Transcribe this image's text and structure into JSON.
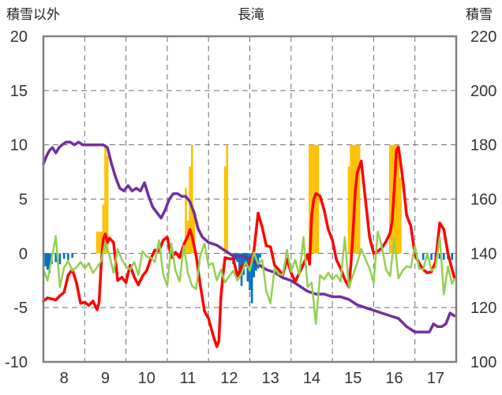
{
  "chart_data": {
    "type": "line",
    "title": "長滝",
    "left_axis_label": "積雪以外",
    "right_axis_label": "積雪",
    "x_ticks": [
      "8",
      "9",
      "10",
      "11",
      "12",
      "13",
      "14",
      "15",
      "16",
      "17"
    ],
    "x_range": [
      7.5,
      17.5
    ],
    "y_left_range": [
      -10,
      20
    ],
    "y_left_ticks": [
      "20",
      "15",
      "10",
      "5",
      "0",
      "-5",
      "-10"
    ],
    "y_right_range": [
      100,
      220
    ],
    "y_right_ticks": [
      "220",
      "200",
      "180",
      "160",
      "140",
      "120",
      "100"
    ],
    "grid": "dashed",
    "series": [
      {
        "color": "#7030A0",
        "axis": "right",
        "x": [
          7.5,
          7.58,
          7.65,
          7.72,
          7.8,
          7.88,
          7.95,
          8.05,
          8.15,
          8.25,
          8.35,
          8.45,
          8.55,
          8.65,
          8.75,
          8.85,
          8.95,
          9.05,
          9.15,
          9.25,
          9.35,
          9.45,
          9.55,
          9.65,
          9.75,
          9.85,
          9.95,
          10.05,
          10.15,
          10.25,
          10.35,
          10.45,
          10.55,
          10.65,
          10.75,
          10.85,
          10.95,
          11.05,
          11.15,
          11.25,
          11.35,
          11.5,
          11.7,
          11.9,
          12.1,
          12.3,
          12.5,
          12.7,
          12.9,
          13.1,
          13.3,
          13.5,
          13.7,
          13.9,
          14.1,
          14.3,
          14.5,
          14.7,
          14.9,
          15.1,
          15.3,
          15.5,
          15.7,
          15.9,
          16.1,
          16.3,
          16.5,
          16.65,
          16.75,
          16.85,
          16.95,
          17.05,
          17.15,
          17.25,
          17.35,
          17.45
        ],
        "values": [
          173,
          176,
          178,
          179,
          177,
          179,
          180,
          181,
          181,
          180,
          181,
          180,
          180,
          180,
          180,
          180,
          180,
          179,
          173,
          168,
          164,
          163,
          165,
          163,
          164,
          163,
          166,
          161,
          157,
          155,
          153,
          156,
          160,
          162,
          162,
          161,
          161,
          159,
          155,
          149,
          146,
          144,
          143,
          141,
          139,
          139,
          138,
          136,
          134,
          133,
          131,
          130,
          128,
          126,
          125,
          125,
          124,
          124,
          123,
          121,
          120,
          119,
          118,
          117,
          116,
          113,
          111,
          111,
          111,
          111,
          114,
          113,
          113,
          114,
          118,
          117
        ]
      },
      {
        "color": "#FF0000",
        "axis": "left",
        "x": [
          7.5,
          7.6,
          7.7,
          7.8,
          7.9,
          8.0,
          8.1,
          8.2,
          8.3,
          8.4,
          8.5,
          8.6,
          8.7,
          8.8,
          8.85,
          8.9,
          8.95,
          9.0,
          9.05,
          9.1,
          9.2,
          9.3,
          9.4,
          9.5,
          9.6,
          9.7,
          9.8,
          9.9,
          10.0,
          10.1,
          10.2,
          10.3,
          10.4,
          10.5,
          10.6,
          10.7,
          10.8,
          10.9,
          11.0,
          11.05,
          11.1,
          11.2,
          11.3,
          11.4,
          11.5,
          11.6,
          11.7,
          11.75,
          11.8,
          11.85,
          11.9,
          12.0,
          12.1,
          12.2,
          12.3,
          12.4,
          12.5,
          12.6,
          12.7,
          12.8,
          12.9,
          13.0,
          13.1,
          13.2,
          13.3,
          13.4,
          13.5,
          13.6,
          13.7,
          13.8,
          13.9,
          13.95,
          14.0,
          14.05,
          14.1,
          14.2,
          14.3,
          14.4,
          14.5,
          14.6,
          14.7,
          14.8,
          14.9,
          14.95,
          15.0,
          15.05,
          15.1,
          15.2,
          15.3,
          15.4,
          15.5,
          15.6,
          15.7,
          15.8,
          15.9,
          15.95,
          16.0,
          16.05,
          16.1,
          16.2,
          16.3,
          16.4,
          16.5,
          16.6,
          16.7,
          16.8,
          16.9,
          17.0,
          17.1,
          17.2,
          17.3,
          17.4,
          17.45
        ],
        "values": [
          -4.4,
          -4.1,
          -4.2,
          -4.3,
          -3.9,
          -3.6,
          -2.0,
          -1.5,
          -2.7,
          -4.6,
          -4.5,
          -4.8,
          -4.4,
          -5.2,
          -4.5,
          -1.0,
          1.3,
          1.8,
          1.0,
          1.4,
          1.0,
          -2.5,
          -2.2,
          -2.7,
          -1.1,
          -2.2,
          -2.9,
          -2.1,
          -1.6,
          -0.5,
          0.3,
          0.2,
          1.2,
          1.5,
          -0.4,
          0.1,
          -0.4,
          0.8,
          1.6,
          2.2,
          1.6,
          -0.2,
          -2.9,
          -5.3,
          -6.0,
          -7.4,
          -8.6,
          -8.1,
          -4.0,
          -2.0,
          -0.4,
          -0.5,
          -0.5,
          -2.1,
          -1.2,
          -1.0,
          -0.9,
          0.2,
          3.7,
          2.4,
          0.7,
          0.6,
          -1.1,
          -1.5,
          -2.0,
          -0.5,
          -1.8,
          -2.6,
          -1.8,
          -1.0,
          -0.1,
          -1.0,
          3.5,
          5.0,
          5.5,
          5.3,
          4.0,
          2.2,
          1.2,
          -0.6,
          -1.4,
          -2.4,
          -3.1,
          -1.0,
          2.0,
          5.5,
          7.4,
          8.5,
          5.0,
          1.5,
          0.0,
          0.2,
          0.5,
          1.1,
          1.9,
          3.0,
          6.0,
          9.5,
          9.8,
          7.0,
          3.5,
          2.5,
          -0.1,
          -0.9,
          -1.5,
          -1.8,
          -1.7,
          -0.8,
          2.8,
          2.2,
          0.0,
          -1.5,
          -2.2
        ]
      },
      {
        "color": "#92D050",
        "axis": "left",
        "x": [
          7.5,
          7.6,
          7.7,
          7.8,
          7.9,
          8.0,
          8.1,
          8.2,
          8.3,
          8.4,
          8.5,
          8.6,
          8.7,
          8.8,
          8.9,
          9.0,
          9.1,
          9.2,
          9.3,
          9.4,
          9.5,
          9.6,
          9.7,
          9.8,
          9.9,
          10.0,
          10.1,
          10.2,
          10.3,
          10.4,
          10.5,
          10.6,
          10.7,
          10.8,
          10.9,
          11.0,
          11.1,
          11.2,
          11.3,
          11.4,
          11.5,
          11.6,
          11.7,
          11.8,
          11.9,
          12.0,
          12.1,
          12.2,
          12.3,
          12.4,
          12.5,
          12.6,
          12.7,
          12.8,
          12.9,
          13.0,
          13.1,
          13.2,
          13.3,
          13.4,
          13.5,
          13.6,
          13.7,
          13.8,
          13.9,
          14.0,
          14.1,
          14.2,
          14.3,
          14.4,
          14.5,
          14.6,
          14.7,
          14.8,
          14.9,
          15.0,
          15.1,
          15.2,
          15.3,
          15.4,
          15.5,
          15.6,
          15.7,
          15.8,
          15.9,
          16.0,
          16.1,
          16.2,
          16.3,
          16.4,
          16.5,
          16.6,
          16.7,
          16.8,
          16.9,
          17.0,
          17.1,
          17.2,
          17.3,
          17.4,
          17.45
        ],
        "values": [
          -1.5,
          -2.5,
          -0.5,
          1.6,
          -3.1,
          -1.3,
          -0.7,
          -1.6,
          -1.3,
          -0.8,
          -1.4,
          -0.9,
          -1.8,
          -1.3,
          -0.7,
          1.0,
          -0.2,
          -1.8,
          0.4,
          -0.6,
          -1.2,
          -1.5,
          -0.8,
          -2.0,
          0.2,
          -0.3,
          -0.4,
          -0.8,
          1.2,
          -1.9,
          -3.0,
          0.9,
          -1.6,
          -2.6,
          0.7,
          -1.8,
          -3.0,
          -3.3,
          -0.2,
          0.9,
          -1.1,
          -0.9,
          -2.5,
          -1.5,
          -2.7,
          -2.1,
          -1.6,
          -2.5,
          -1.9,
          -0.8,
          -1.6,
          0.1,
          -1.0,
          -0.6,
          -3.5,
          -4.6,
          -1.4,
          -1.9,
          -2.0,
          0.3,
          -1.7,
          -0.6,
          -2.0,
          1.5,
          -3.1,
          -2.7,
          -6.5,
          -2.0,
          -2.4,
          -1.8,
          -2.4,
          -2.0,
          -2.6,
          1.5,
          -3.1,
          -2.0,
          -0.9,
          0.4,
          -0.5,
          -1.4,
          -2.7,
          2.0,
          0.6,
          -1.5,
          -2.1,
          1.4,
          -2.3,
          -1.6,
          -1.2,
          -1.3,
          0.7,
          -1.4,
          -1.5,
          0.0,
          -1.6,
          -1.3,
          1.5,
          -3.8,
          -1.2,
          -2.8,
          -2.4
        ]
      }
    ],
    "bars": [
      {
        "color": "#FFC000",
        "axis": "left",
        "x": [
          8.8,
          8.85,
          8.9,
          8.95,
          9.0,
          9.05,
          10.95,
          11.0,
          11.05,
          11.1,
          11.15,
          11.9,
          11.95,
          13.95,
          14.0,
          14.05,
          14.1,
          14.15,
          14.9,
          14.95,
          15.0,
          15.05,
          15.1,
          15.15,
          15.9,
          15.95,
          16.0,
          16.05,
          16.1,
          16.15
        ],
        "values": [
          2.0,
          2.0,
          2.0,
          4.5,
          10.0,
          9.0,
          6.0,
          3.0,
          8.0,
          10.0,
          4.0,
          8.0,
          10.0,
          10.0,
          10.0,
          10.0,
          10.0,
          10.0,
          8.0,
          10.0,
          10.0,
          10.0,
          10.0,
          10.0,
          10.0,
          10.0,
          10.0,
          10.0,
          9.0,
          7.0
        ]
      },
      {
        "color": "#0070C0",
        "axis": "left",
        "x": [
          7.55,
          7.6,
          7.65,
          7.7,
          7.8,
          7.9,
          8.0,
          8.1,
          8.2,
          12.1,
          12.15,
          12.2,
          12.25,
          12.3,
          12.35,
          12.4,
          12.45,
          12.5,
          12.55,
          12.6,
          12.65,
          12.7,
          12.75,
          16.7,
          16.8,
          16.9,
          17.0,
          17.1,
          17.2,
          17.3,
          17.4
        ],
        "values": [
          -1.2,
          -1.5,
          -1.8,
          -1.0,
          -0.8,
          -1.0,
          -0.5,
          -0.6,
          -0.4,
          -1.0,
          -0.6,
          -0.8,
          -2.0,
          -3.0,
          -2.0,
          -1.2,
          -2.6,
          -3.4,
          -4.6,
          -2.2,
          -1.6,
          -1.4,
          -0.4,
          -0.6,
          -0.5,
          -0.6,
          -0.4,
          -0.5,
          -0.6,
          -0.5,
          -0.6
        ]
      }
    ]
  }
}
